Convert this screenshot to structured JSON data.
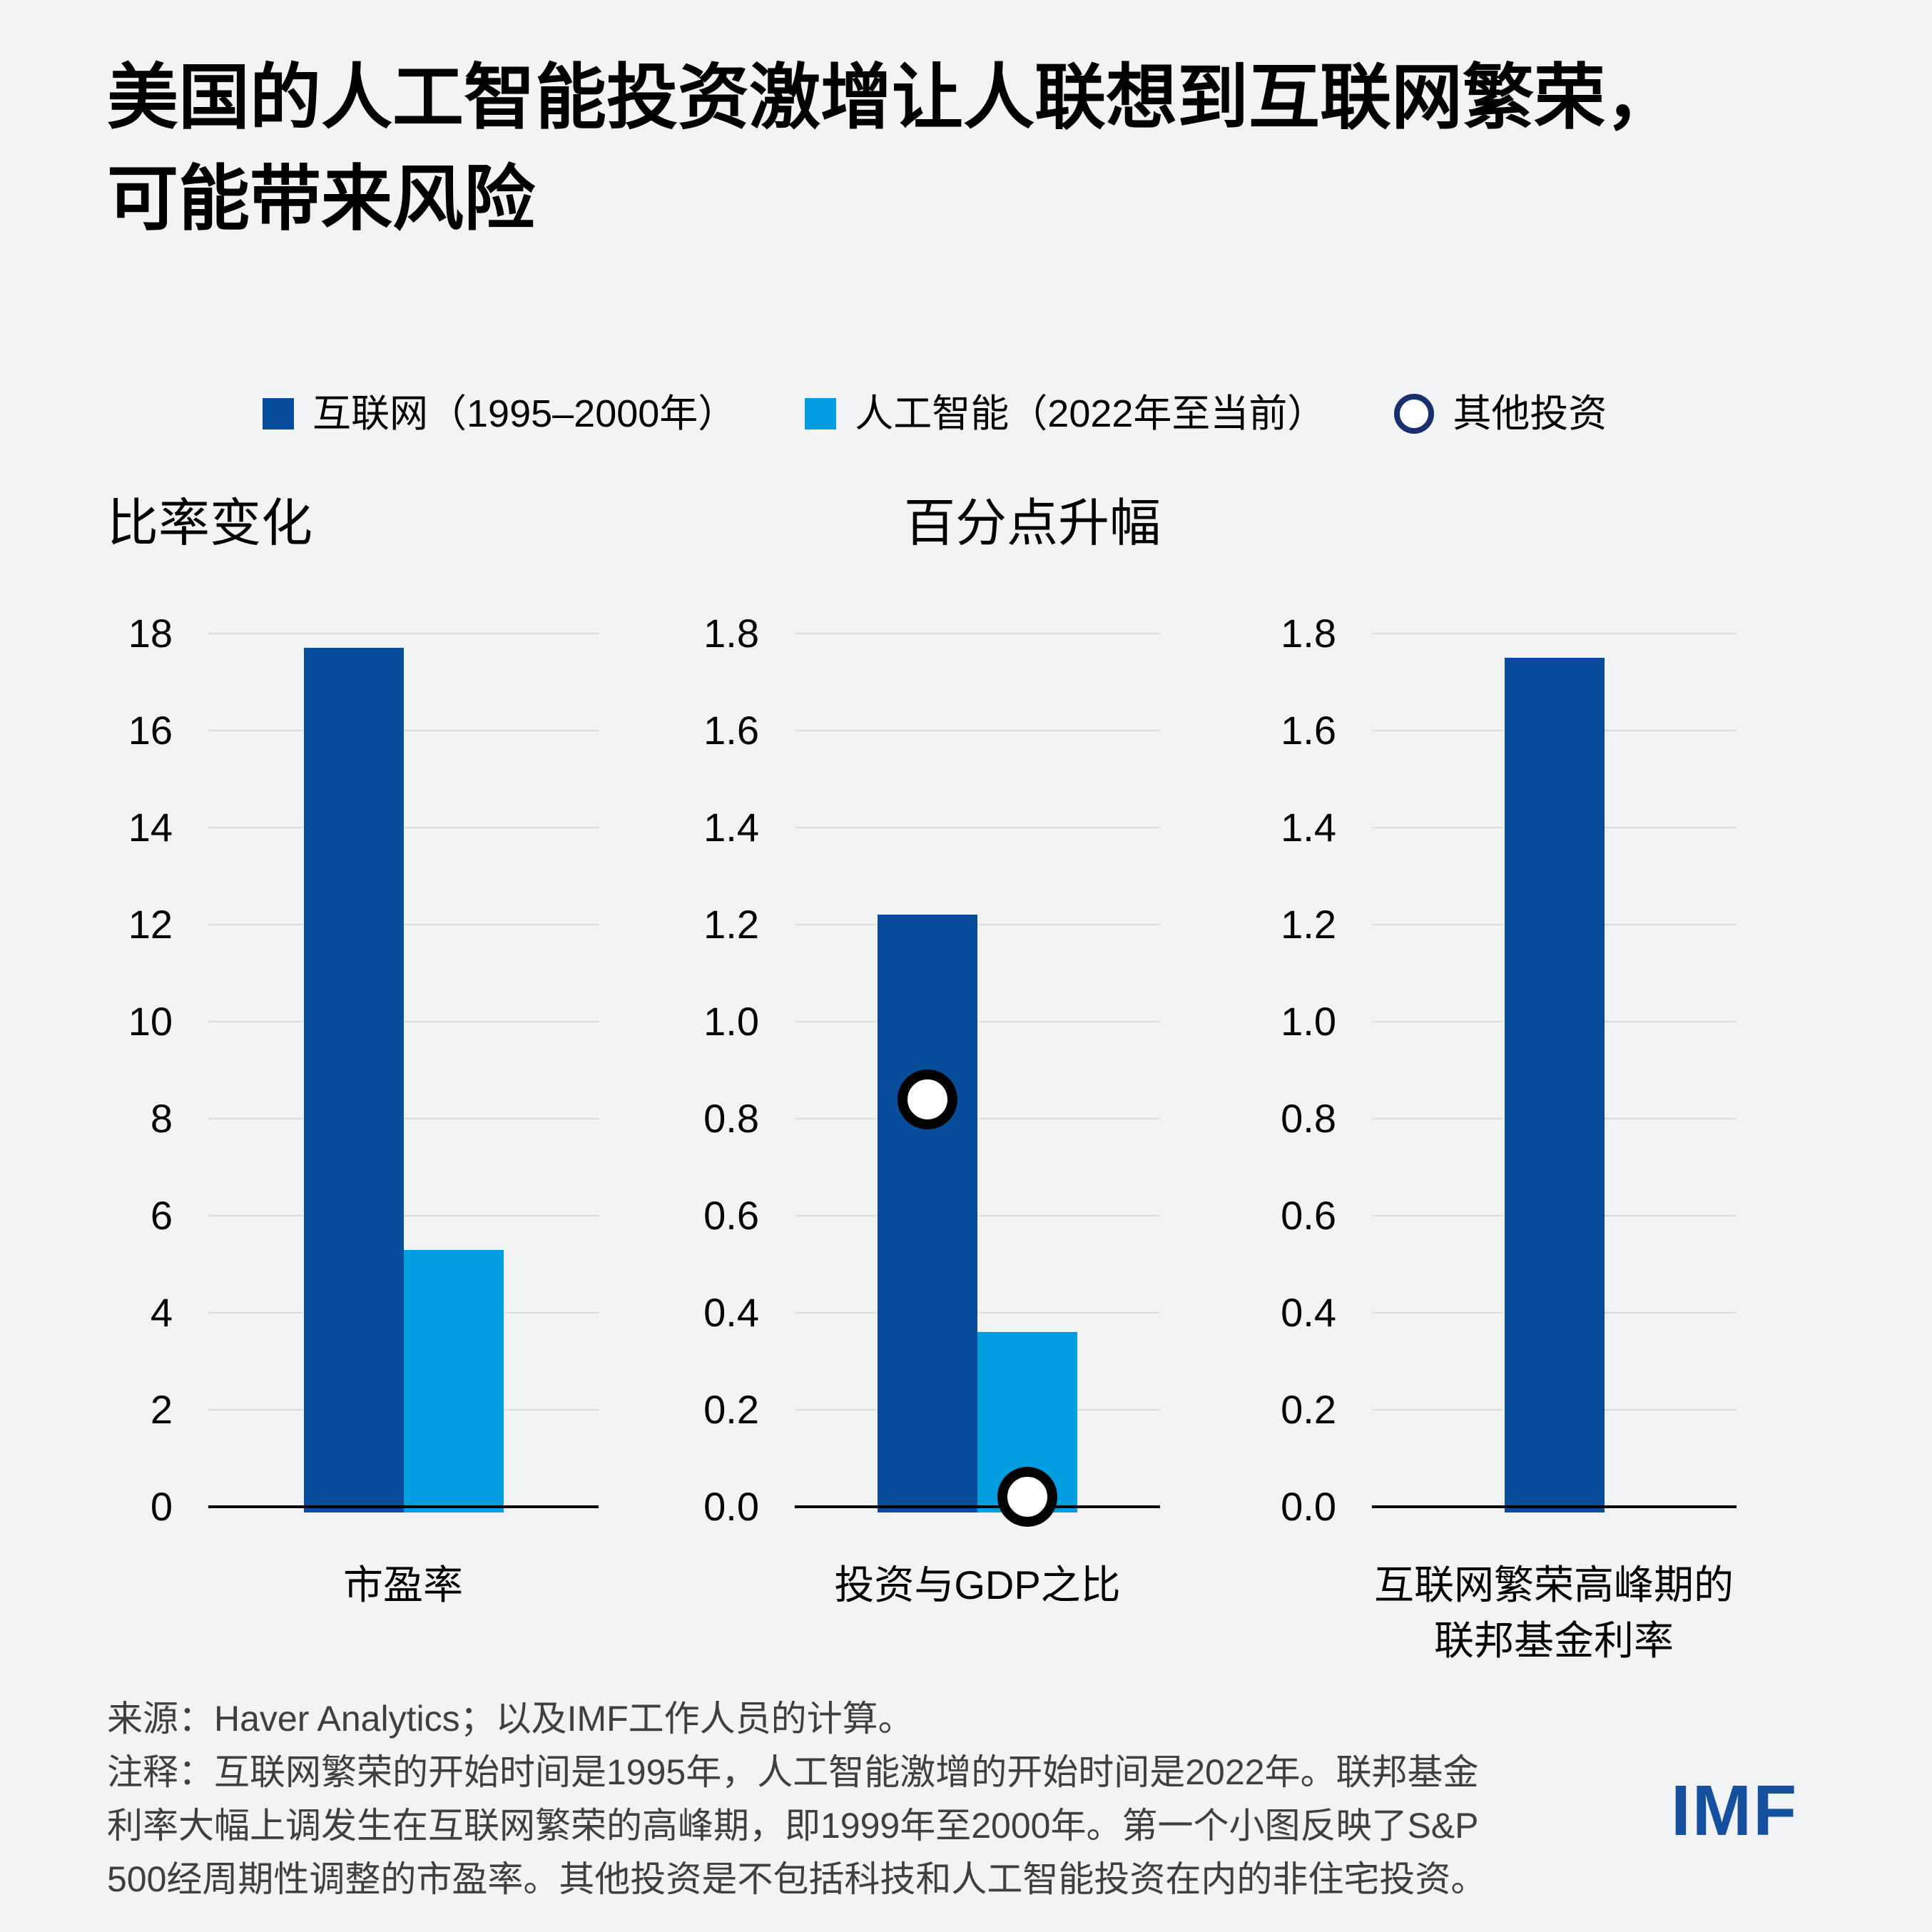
{
  "title": {
    "line1": "美国的人工智能投资激增让人联想到互联网繁荣，",
    "line2": "可能带来风险"
  },
  "legend": [
    {
      "label": "互联网（1995–2000年）",
      "marker": "square",
      "color": "#084D9B"
    },
    {
      "label": "人工智能（2022年至当前）",
      "marker": "square",
      "color": "#009EE0"
    },
    {
      "label": "其他投资",
      "marker": "circle",
      "color": "#1A2F6E"
    }
  ],
  "chart_data": [
    {
      "type": "bar",
      "title": "比率变化",
      "xlabel": "市盈率",
      "ylim": [
        0,
        18
      ],
      "ytick_values": [
        18,
        16,
        14,
        12,
        10,
        8,
        6,
        4,
        2,
        0
      ],
      "ytick_labels": [
        "18",
        "16",
        "14",
        "12",
        "10",
        "8",
        "6",
        "4",
        "2",
        "0"
      ],
      "grid": true,
      "series": [
        {
          "name": "互联网（1995–2000年）",
          "value": 17.7,
          "color": "#084D9B"
        },
        {
          "name": "人工智能（2022年至当前）",
          "value": 5.3,
          "color": "#009EE0"
        }
      ]
    },
    {
      "type": "bar",
      "title": "百分点升幅",
      "xlabel": "投资与GDP之比",
      "ylim": [
        0,
        1.8
      ],
      "ytick_values": [
        1.8,
        1.6,
        1.4,
        1.2,
        1.0,
        0.8,
        0.6,
        0.4,
        0.2,
        0.0
      ],
      "ytick_labels": [
        "1.8",
        "1.6",
        "1.4",
        "1.2",
        "1.0",
        "0.8",
        "0.6",
        "0.4",
        "0.2",
        "0.0"
      ],
      "grid": true,
      "series": [
        {
          "name": "互联网（1995–2000年）",
          "value": 1.22,
          "color": "#084D9B"
        },
        {
          "name": "人工智能（2022年至当前）",
          "value": 0.36,
          "color": "#009EE0"
        }
      ],
      "markers": [
        {
          "name": "其他投资",
          "on": "互联网（1995–2000年）",
          "value": 0.84
        },
        {
          "name": "其他投资",
          "on": "人工智能（2022年至当前）",
          "value": 0.02
        }
      ]
    },
    {
      "type": "bar",
      "title": "",
      "xlabel": "互联网繁荣高峰期的\n联邦基金利率",
      "ylim": [
        0,
        1.8
      ],
      "ytick_values": [
        1.8,
        1.6,
        1.4,
        1.2,
        1.0,
        0.8,
        0.6,
        0.4,
        0.2,
        0.0
      ],
      "ytick_labels": [
        "1.8",
        "1.6",
        "1.4",
        "1.2",
        "1.0",
        "0.8",
        "0.6",
        "0.4",
        "0.2",
        "0.0"
      ],
      "grid": true,
      "series": [
        {
          "name": "互联网（1995–2000年）",
          "value": 1.75,
          "color": "#084D9B"
        }
      ]
    }
  ],
  "footer": {
    "source": "来源：Haver Analytics；以及IMF工作人员的计算。",
    "note_lines": [
      "注释：互联网繁荣的开始时间是1995年，人工智能激增的开始时间是2022年。联邦基金",
      "利率大幅上调发生在互联网繁荣的高峰期，即1999年至2000年。第一个小图反映了S&P",
      "500经周期性调整的市盈率。其他投资是不包括科技和人工智能投资在内的非住宅投资。"
    ]
  },
  "logo": "IMF",
  "colors": {
    "background": "#F2F3F5",
    "internet_bar": "#084D9B",
    "ai_bar": "#009EE0",
    "legend_circle_ring": "#1A2F6E",
    "chart_marker_ring": "#000000",
    "gridline": "#DBDBDD",
    "axis": "#000000",
    "footer_text": "#3F3F3F",
    "logo_blue": "#15509E"
  }
}
